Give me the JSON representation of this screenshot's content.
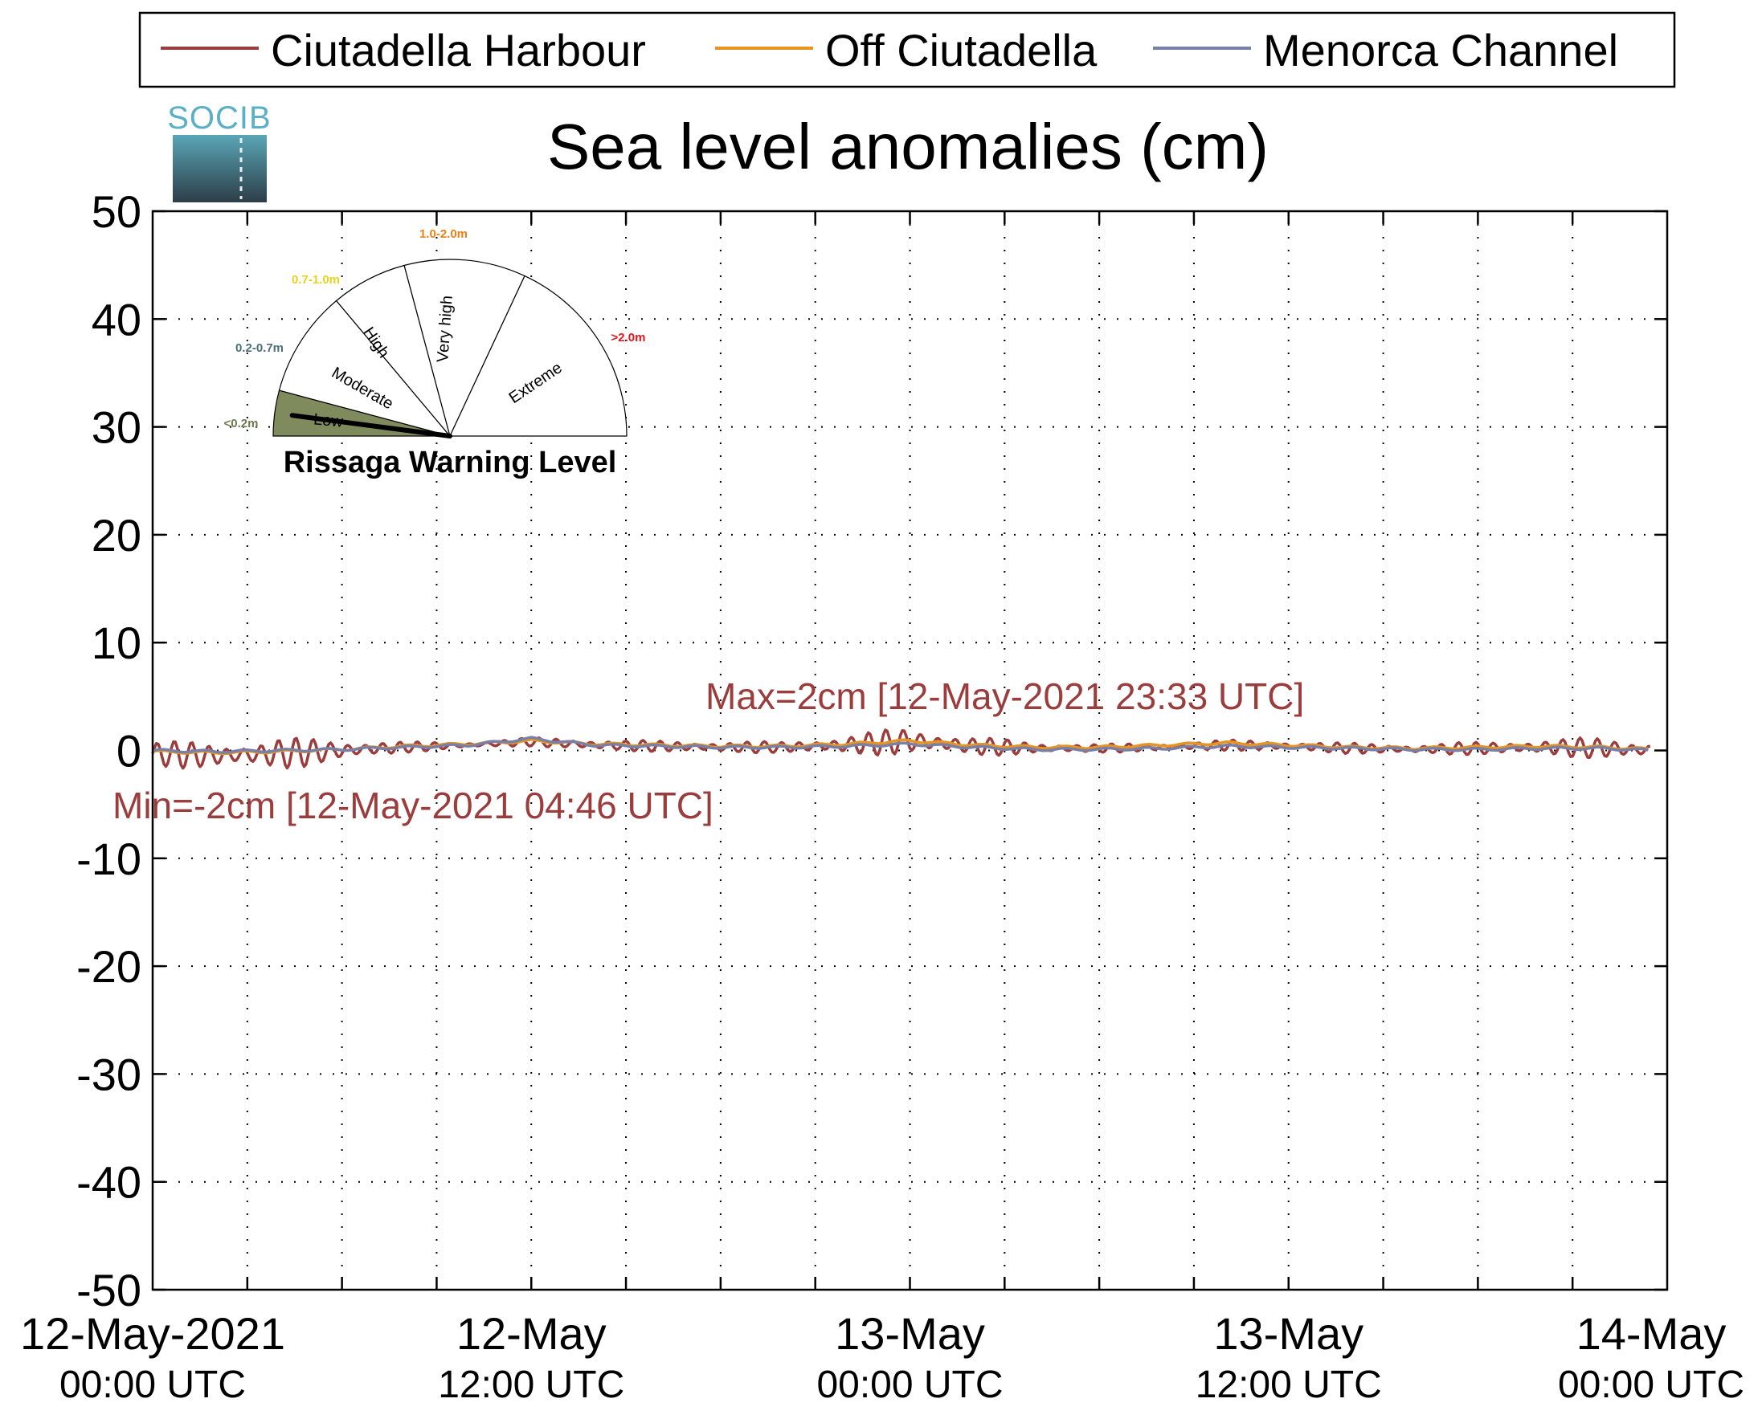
{
  "logo": {
    "text": "SOCIB"
  },
  "gauge": {
    "title": "Rissaga Warning Level",
    "current_level": "Low",
    "sectors": [
      {
        "name": "Low",
        "range": "<0.2m",
        "range_color": "#6f7a4e",
        "fill": "#7f8a5d",
        "active": true
      },
      {
        "name": "Moderate",
        "range": "0.2-0.7m",
        "range_color": "#4b6f78",
        "fill": "#ffffff",
        "active": false
      },
      {
        "name": "High",
        "range": "0.7-1.0m",
        "range_color": "#e8d21a",
        "fill": "#ffffff",
        "active": false
      },
      {
        "name": "Very high",
        "range": "1.0-2.0m",
        "range_color": "#ef7f14",
        "fill": "#ffffff",
        "active": false
      },
      {
        "name": "Extreme",
        "range": ">2.0m",
        "range_color": "#e8141c",
        "fill": "#ffffff",
        "active": false
      }
    ]
  },
  "annotations": {
    "max": "Max=2cm [12-May-2021 23:33 UTC]",
    "min": "Min=-2cm [12-May-2021 04:46 UTC]",
    "color": "#9c3d3d"
  },
  "chart_data": {
    "type": "line",
    "title": "Sea level anomalies (cm)",
    "xlabel": "",
    "ylabel": "",
    "ylim": [
      -50,
      50
    ],
    "yticks": [
      50,
      40,
      30,
      20,
      10,
      0,
      -10,
      -20,
      -30,
      -40,
      -50
    ],
    "x_range": [
      "2021-05-12 00:00",
      "2021-05-14 00:00"
    ],
    "x_minor_tick_hours": 3,
    "xtick_labels": [
      {
        "hour": 0,
        "date": "12-May-2021",
        "time": "00:00 UTC"
      },
      {
        "hour": 12,
        "date": "12-May",
        "time": "12:00 UTC"
      },
      {
        "hour": 24,
        "date": "13-May",
        "time": "00:00 UTC"
      },
      {
        "hour": 36,
        "date": "13-May",
        "time": "12:00 UTC"
      },
      {
        "hour": 48,
        "date": "14-May",
        "time": "00:00 UTC"
      }
    ],
    "grid": true,
    "legend_position": "top",
    "x_hours_since_2021_05_12_0000": [
      0,
      2,
      4,
      6,
      8,
      10,
      12,
      14,
      16,
      18,
      20,
      22,
      24,
      26,
      28,
      30,
      32,
      34,
      36,
      38,
      40,
      42,
      44,
      46,
      47.5
    ],
    "series": [
      {
        "name": "Ciutadella Harbour",
        "color": "#9c3d3d",
        "amplitude": [
          1.3,
          1.2,
          1.5,
          1.1,
          0.5,
          0.3,
          0.4,
          0.6,
          0.5,
          0.6,
          0.5,
          1.0,
          1.3,
          0.9,
          0.6,
          0.4,
          0.4,
          0.5,
          0.5,
          0.5,
          0.5,
          0.6,
          0.8,
          1.0,
          0.9
        ],
        "values": [
          -0.3,
          -0.5,
          -0.3,
          0.0,
          0.3,
          0.5,
          0.8,
          0.5,
          0.4,
          0.3,
          0.3,
          0.5,
          0.9,
          0.4,
          0.2,
          0.2,
          0.3,
          0.5,
          0.4,
          0.2,
          0.1,
          0.2,
          0.3,
          0.2,
          0.0
        ]
      },
      {
        "name": "Off Ciutadella",
        "color": "#e69523",
        "values": [
          -0.1,
          -0.2,
          -0.1,
          0.1,
          0.4,
          0.6,
          0.9,
          0.6,
          0.5,
          0.4,
          0.4,
          0.6,
          0.9,
          0.5,
          0.3,
          0.3,
          0.5,
          0.7,
          0.5,
          0.3,
          0.2,
          0.3,
          0.4,
          0.3,
          0.1
        ]
      },
      {
        "name": "Menorca Channel",
        "color": "#7880a8",
        "values": [
          0.0,
          -0.1,
          0.0,
          0.1,
          0.3,
          0.5,
          1.1,
          0.5,
          0.4,
          0.3,
          0.3,
          0.4,
          0.6,
          0.3,
          0.1,
          0.1,
          0.2,
          0.4,
          0.3,
          0.2,
          0.1,
          0.1,
          0.2,
          0.2,
          0.0
        ]
      }
    ]
  }
}
